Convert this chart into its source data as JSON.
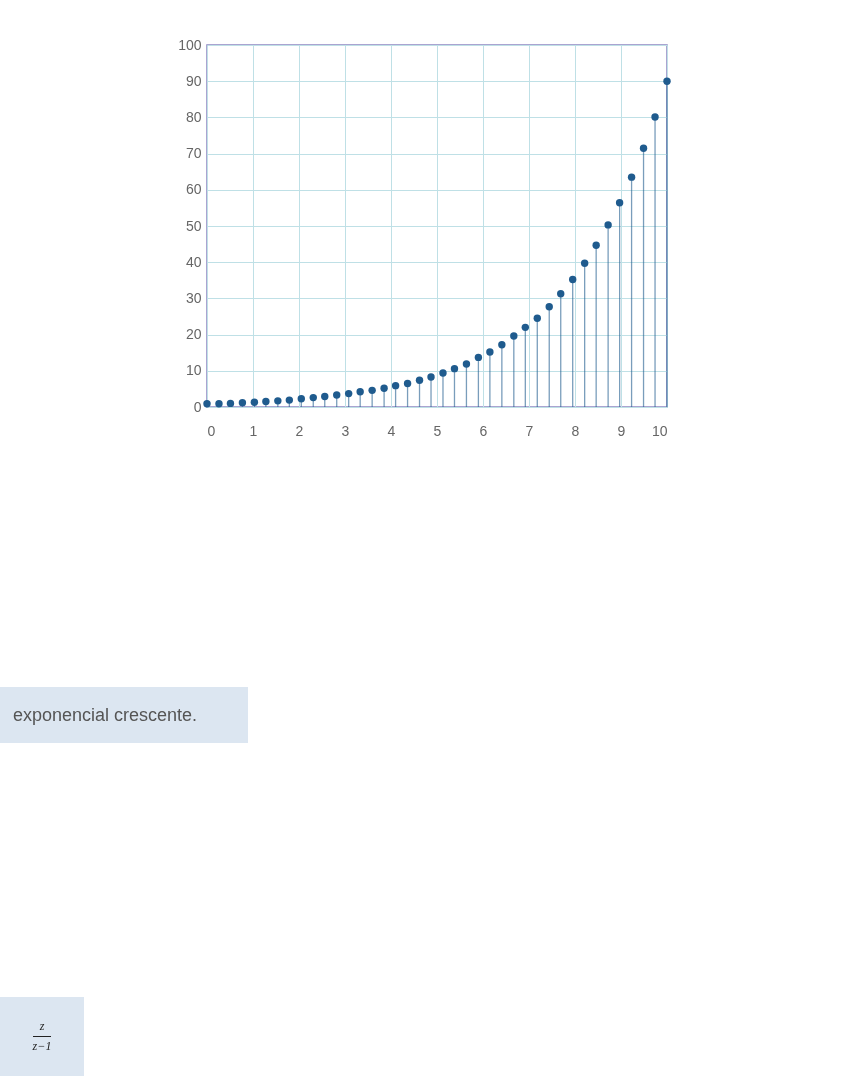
{
  "chart_data": {
    "type": "lollipop",
    "x": [
      0,
      0.26,
      0.51,
      0.77,
      1.03,
      1.28,
      1.54,
      1.79,
      2.05,
      2.31,
      2.56,
      2.82,
      3.08,
      3.33,
      3.59,
      3.85,
      4.1,
      4.36,
      4.62,
      4.87,
      5.13,
      5.38,
      5.64,
      5.9,
      6.15,
      6.41,
      6.67,
      6.92,
      7.18,
      7.44,
      7.69,
      7.95,
      8.21,
      8.46,
      8.72,
      8.97,
      9.23,
      9.49,
      9.74,
      10
    ],
    "values": [
      0.9,
      0.9,
      1.0,
      1.2,
      1.3,
      1.5,
      1.7,
      1.9,
      2.3,
      2.6,
      2.9,
      3.3,
      3.7,
      4.2,
      4.6,
      5.2,
      5.9,
      6.5,
      7.4,
      8.3,
      9.4,
      10.6,
      11.9,
      13.7,
      15.2,
      17.2,
      19.6,
      22.0,
      24.5,
      27.7,
      31.3,
      35.2,
      39.7,
      44.7,
      50.3,
      56.4,
      63.5,
      71.5,
      80.1,
      90
    ],
    "color": "#1f5b8e",
    "marker": "circle",
    "xlim": [
      0,
      10
    ],
    "xticks": [
      0,
      1,
      2,
      3,
      4,
      5,
      6,
      7,
      8,
      9,
      10
    ],
    "ylim": [
      0,
      100
    ],
    "yticks": [
      0,
      10,
      20,
      30,
      40,
      50,
      60,
      70,
      80,
      90,
      100
    ],
    "grid": true,
    "annotations": [
      "exponencial crescente.",
      "z",
      "z−1"
    ]
  }
}
